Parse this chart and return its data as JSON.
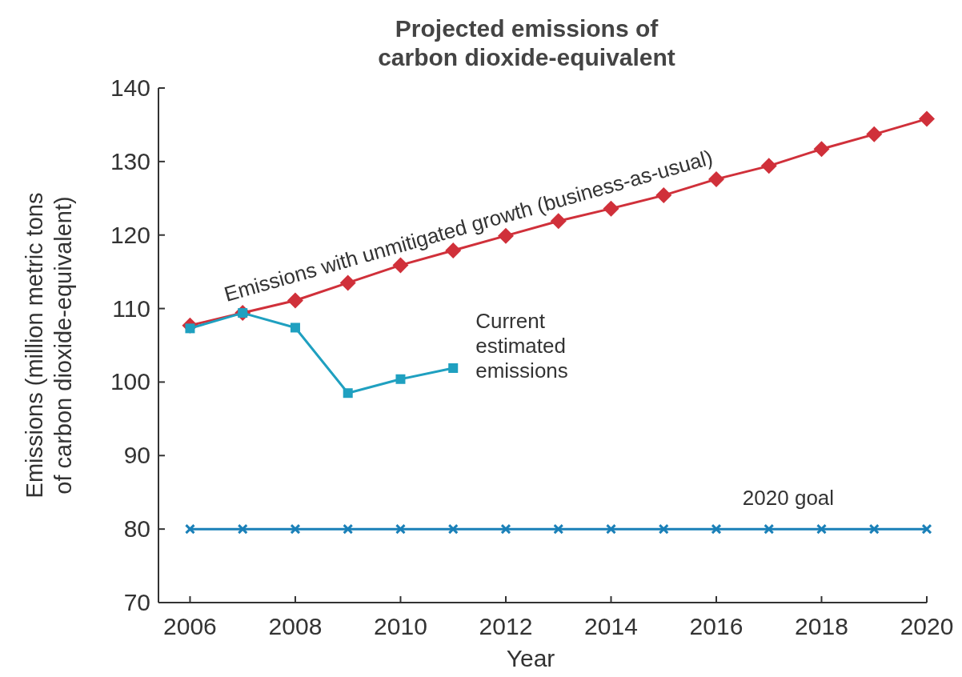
{
  "chart_data": {
    "type": "line",
    "title": "Projected emissions of carbon dioxide-equivalent",
    "xlabel": "Year",
    "ylabel": "Emissions (million metric tons of carbon dioxide-equivalent)",
    "x": [
      2006,
      2007,
      2008,
      2009,
      2010,
      2011,
      2012,
      2013,
      2014,
      2015,
      2016,
      2017,
      2018,
      2019,
      2020
    ],
    "series": [
      {
        "name": "Emissions with unmitigated growth (business-as-usual)",
        "color": "#d0303a",
        "marker": "diamond",
        "values": [
          107.7,
          109.4,
          111.1,
          113.5,
          115.9,
          117.9,
          119.9,
          121.9,
          123.6,
          125.4,
          127.6,
          129.4,
          131.7,
          133.7,
          135.8
        ]
      },
      {
        "name": "Current estimated emissions",
        "color": "#1fa0c0",
        "marker": "square",
        "values": [
          107.3,
          109.4,
          107.4,
          98.5,
          100.4,
          101.9,
          null,
          null,
          null,
          null,
          null,
          null,
          null,
          null,
          null
        ]
      },
      {
        "name": "2020 goal",
        "color": "#1a80b8",
        "marker": "cross",
        "values": [
          80,
          80,
          80,
          80,
          80,
          80,
          80,
          80,
          80,
          80,
          80,
          80,
          80,
          80,
          80
        ]
      }
    ],
    "xlim": [
      2005.4,
      2020
    ],
    "xticks": [
      2006,
      2008,
      2010,
      2012,
      2014,
      2016,
      2018,
      2020
    ],
    "ylim": [
      70,
      140
    ],
    "yticks": [
      70,
      80,
      90,
      100,
      110,
      120,
      130,
      140
    ],
    "grid": false
  }
}
